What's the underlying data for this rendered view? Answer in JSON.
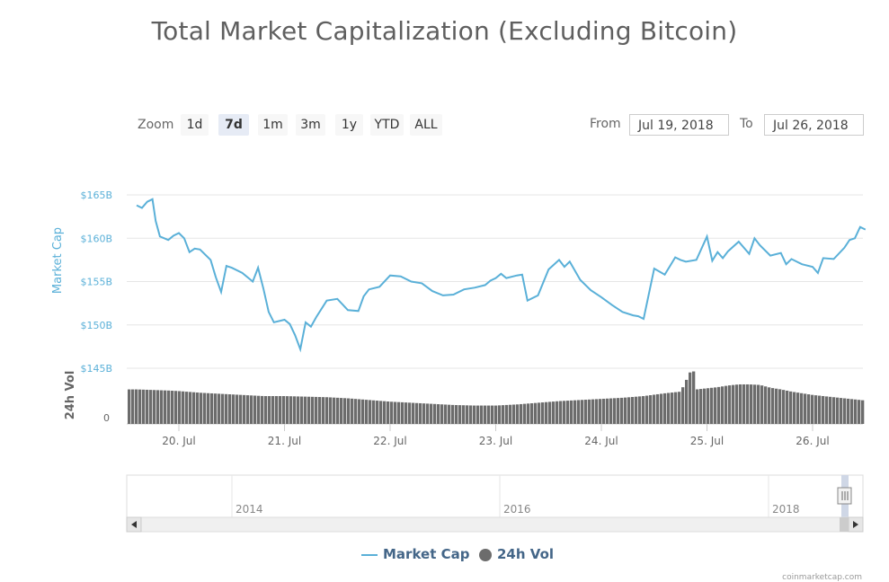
{
  "title": "Total Market Capitalization (Excluding Bitcoin)",
  "zoom": {
    "label": "Zoom",
    "buttons": [
      "1d",
      "7d",
      "1m",
      "3m",
      "1y",
      "YTD",
      "ALL"
    ],
    "active": "7d"
  },
  "range": {
    "from_label": "From",
    "from_value": "Jul 19, 2018",
    "to_label": "To",
    "to_value": "Jul 26, 2018"
  },
  "legend": {
    "market_cap": "Market Cap",
    "vol": "24h Vol"
  },
  "credit": "coinmarketcap.com",
  "colors": {
    "line": "#5ab0d8",
    "volume": "#6c6c6c",
    "axis_text": "#5ab0d8"
  },
  "chart_data": {
    "type": "line",
    "title": "Total Market Capitalization (Excluding Bitcoin)",
    "ylabel": "Market Cap",
    "ylabel2": "24h Vol",
    "ylim": [
      145,
      165
    ],
    "y_ticks": [
      "$165B",
      "$160B",
      "$155B",
      "$150B",
      "$145B"
    ],
    "y2_ticks": [
      "0"
    ],
    "x_ticks": [
      "20. Jul",
      "21. Jul",
      "22. Jul",
      "23. Jul",
      "24. Jul",
      "25. Jul",
      "26. Jul"
    ],
    "navigator_ticks": [
      "2014",
      "2016",
      "2018"
    ],
    "series": [
      {
        "name": "Market Cap",
        "x": [
          19.6,
          19.65,
          19.7,
          19.75,
          19.78,
          19.82,
          19.9,
          19.95,
          20.0,
          20.05,
          20.1,
          20.15,
          20.2,
          20.3,
          20.35,
          20.4,
          20.45,
          20.5,
          20.6,
          20.7,
          20.75,
          20.8,
          20.85,
          20.9,
          21.0,
          21.05,
          21.1,
          21.15,
          21.2,
          21.25,
          21.3,
          21.4,
          21.5,
          21.6,
          21.7,
          21.75,
          21.8,
          21.9,
          22.0,
          22.1,
          22.2,
          22.3,
          22.4,
          22.5,
          22.6,
          22.7,
          22.8,
          22.9,
          22.95,
          23.0,
          23.05,
          23.1,
          23.2,
          23.25,
          23.3,
          23.4,
          23.5,
          23.6,
          23.65,
          23.7,
          23.8,
          23.9,
          24.0,
          24.1,
          24.2,
          24.3,
          24.35,
          24.4,
          24.5,
          24.6,
          24.65,
          24.7,
          24.75,
          24.8,
          24.9,
          25.0,
          25.05,
          25.1,
          25.15,
          25.2,
          25.3,
          25.4,
          25.45,
          25.5,
          25.6,
          25.7,
          25.75,
          25.8,
          25.9,
          26.0,
          26.05,
          26.1,
          26.2,
          26.3,
          26.35,
          26.4,
          26.45,
          26.5
        ],
        "values": [
          163.8,
          163.5,
          164.2,
          164.5,
          162.0,
          160.2,
          159.8,
          160.3,
          160.6,
          160.0,
          158.4,
          158.8,
          158.7,
          157.5,
          155.5,
          153.8,
          156.8,
          156.6,
          156.0,
          155.0,
          156.6,
          154.2,
          151.5,
          150.3,
          150.6,
          150.1,
          148.8,
          147.2,
          150.3,
          149.8,
          150.9,
          152.8,
          153.0,
          151.7,
          151.6,
          153.3,
          154.1,
          154.4,
          155.7,
          155.6,
          155.0,
          154.8,
          153.9,
          153.4,
          153.5,
          154.1,
          154.3,
          154.6,
          155.1,
          155.4,
          155.9,
          155.4,
          155.7,
          155.8,
          152.8,
          153.4,
          156.4,
          157.5,
          156.7,
          157.3,
          155.2,
          154.0,
          153.2,
          152.3,
          151.5,
          151.1,
          151.0,
          150.7,
          156.5,
          155.8,
          156.8,
          157.8,
          157.5,
          157.3,
          157.5,
          160.2,
          157.4,
          158.4,
          157.7,
          158.5,
          159.6,
          158.2,
          160.0,
          159.2,
          158.0,
          158.3,
          157.0,
          157.6,
          157.0,
          156.7,
          156.0,
          157.7,
          157.6,
          158.9,
          159.8,
          160.0,
          161.3,
          161.0
        ]
      },
      {
        "name": "24h Vol",
        "x": [
          19.5,
          19.6,
          19.75,
          19.9,
          20.0,
          20.2,
          20.4,
          20.6,
          20.8,
          21.0,
          21.2,
          21.4,
          21.6,
          21.8,
          22.0,
          22.2,
          22.4,
          22.6,
          22.8,
          23.0,
          23.2,
          23.4,
          23.6,
          23.8,
          24.0,
          24.2,
          24.4,
          24.6,
          24.75,
          24.85,
          24.87,
          24.9,
          25.0,
          25.1,
          25.2,
          25.3,
          25.4,
          25.5,
          25.6,
          25.7,
          25.8,
          25.9,
          26.0,
          26.1,
          26.2,
          26.3,
          26.4,
          26.5
        ],
        "values": [
          0.62,
          0.62,
          0.61,
          0.6,
          0.59,
          0.56,
          0.54,
          0.52,
          0.5,
          0.5,
          0.49,
          0.48,
          0.46,
          0.43,
          0.4,
          0.38,
          0.36,
          0.34,
          0.33,
          0.33,
          0.35,
          0.38,
          0.41,
          0.43,
          0.45,
          0.47,
          0.5,
          0.55,
          0.58,
          0.97,
          0.97,
          0.62,
          0.64,
          0.66,
          0.69,
          0.71,
          0.71,
          0.7,
          0.65,
          0.62,
          0.58,
          0.55,
          0.52,
          0.5,
          0.48,
          0.46,
          0.44,
          0.42
        ]
      }
    ]
  }
}
